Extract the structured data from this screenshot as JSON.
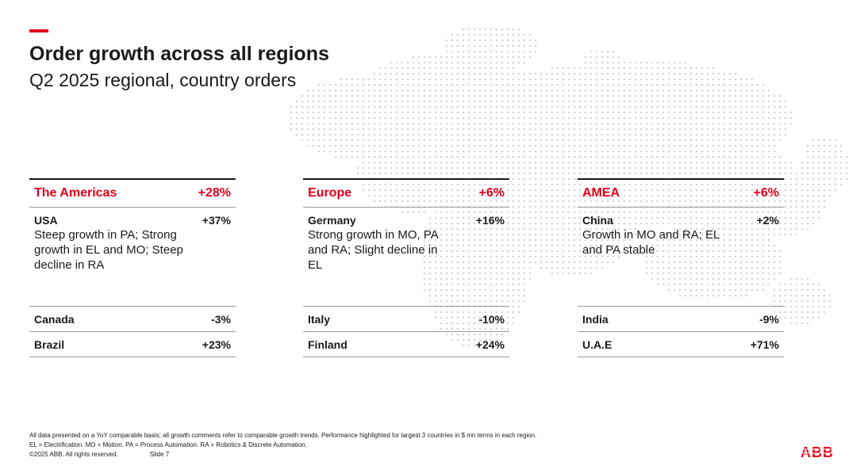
{
  "slide": {
    "title": "Order growth across all regions",
    "subtitle": "Q2 2025 regional, country orders"
  },
  "regions": [
    {
      "name": "The Americas",
      "growth": "+28%",
      "top_country": {
        "name": "USA",
        "growth": "+37%",
        "comment": "Steep growth in PA; Strong growth in EL and MO; Steep decline in RA"
      },
      "others": [
        {
          "name": "Canada",
          "growth": "-3%"
        },
        {
          "name": "Brazil",
          "growth": "+23%"
        }
      ]
    },
    {
      "name": "Europe",
      "growth": "+6%",
      "top_country": {
        "name": "Germany",
        "growth": "+16%",
        "comment": "Strong growth in MO, PA and RA; Slight decline in EL"
      },
      "others": [
        {
          "name": "Italy",
          "growth": "-10%"
        },
        {
          "name": "Finland",
          "growth": "+24%"
        }
      ]
    },
    {
      "name": "AMEA",
      "growth": "+6%",
      "top_country": {
        "name": "China",
        "growth": "+2%",
        "comment": "Growth in MO and RA; EL and PA stable"
      },
      "others": [
        {
          "name": "India",
          "growth": "-9%"
        },
        {
          "name": "U.A.E",
          "growth": "+71%"
        }
      ]
    }
  ],
  "footnotes": {
    "line1": "All data presented on a YoY comparable basis; all growth comments refer to comparable growth trends. Performance highlighted for largest 3 countries in $ mn terms in each region.",
    "line2": "EL = Electrification. MO = Motion. PA = Process Automation. RA = Robotics & Discrete Automation.",
    "copyright": "©2025 ABB. All rights reserved.",
    "slide_no": "Slide 7"
  },
  "brand": {
    "logo_text": "ABB",
    "accent_color": "#e4001b"
  }
}
